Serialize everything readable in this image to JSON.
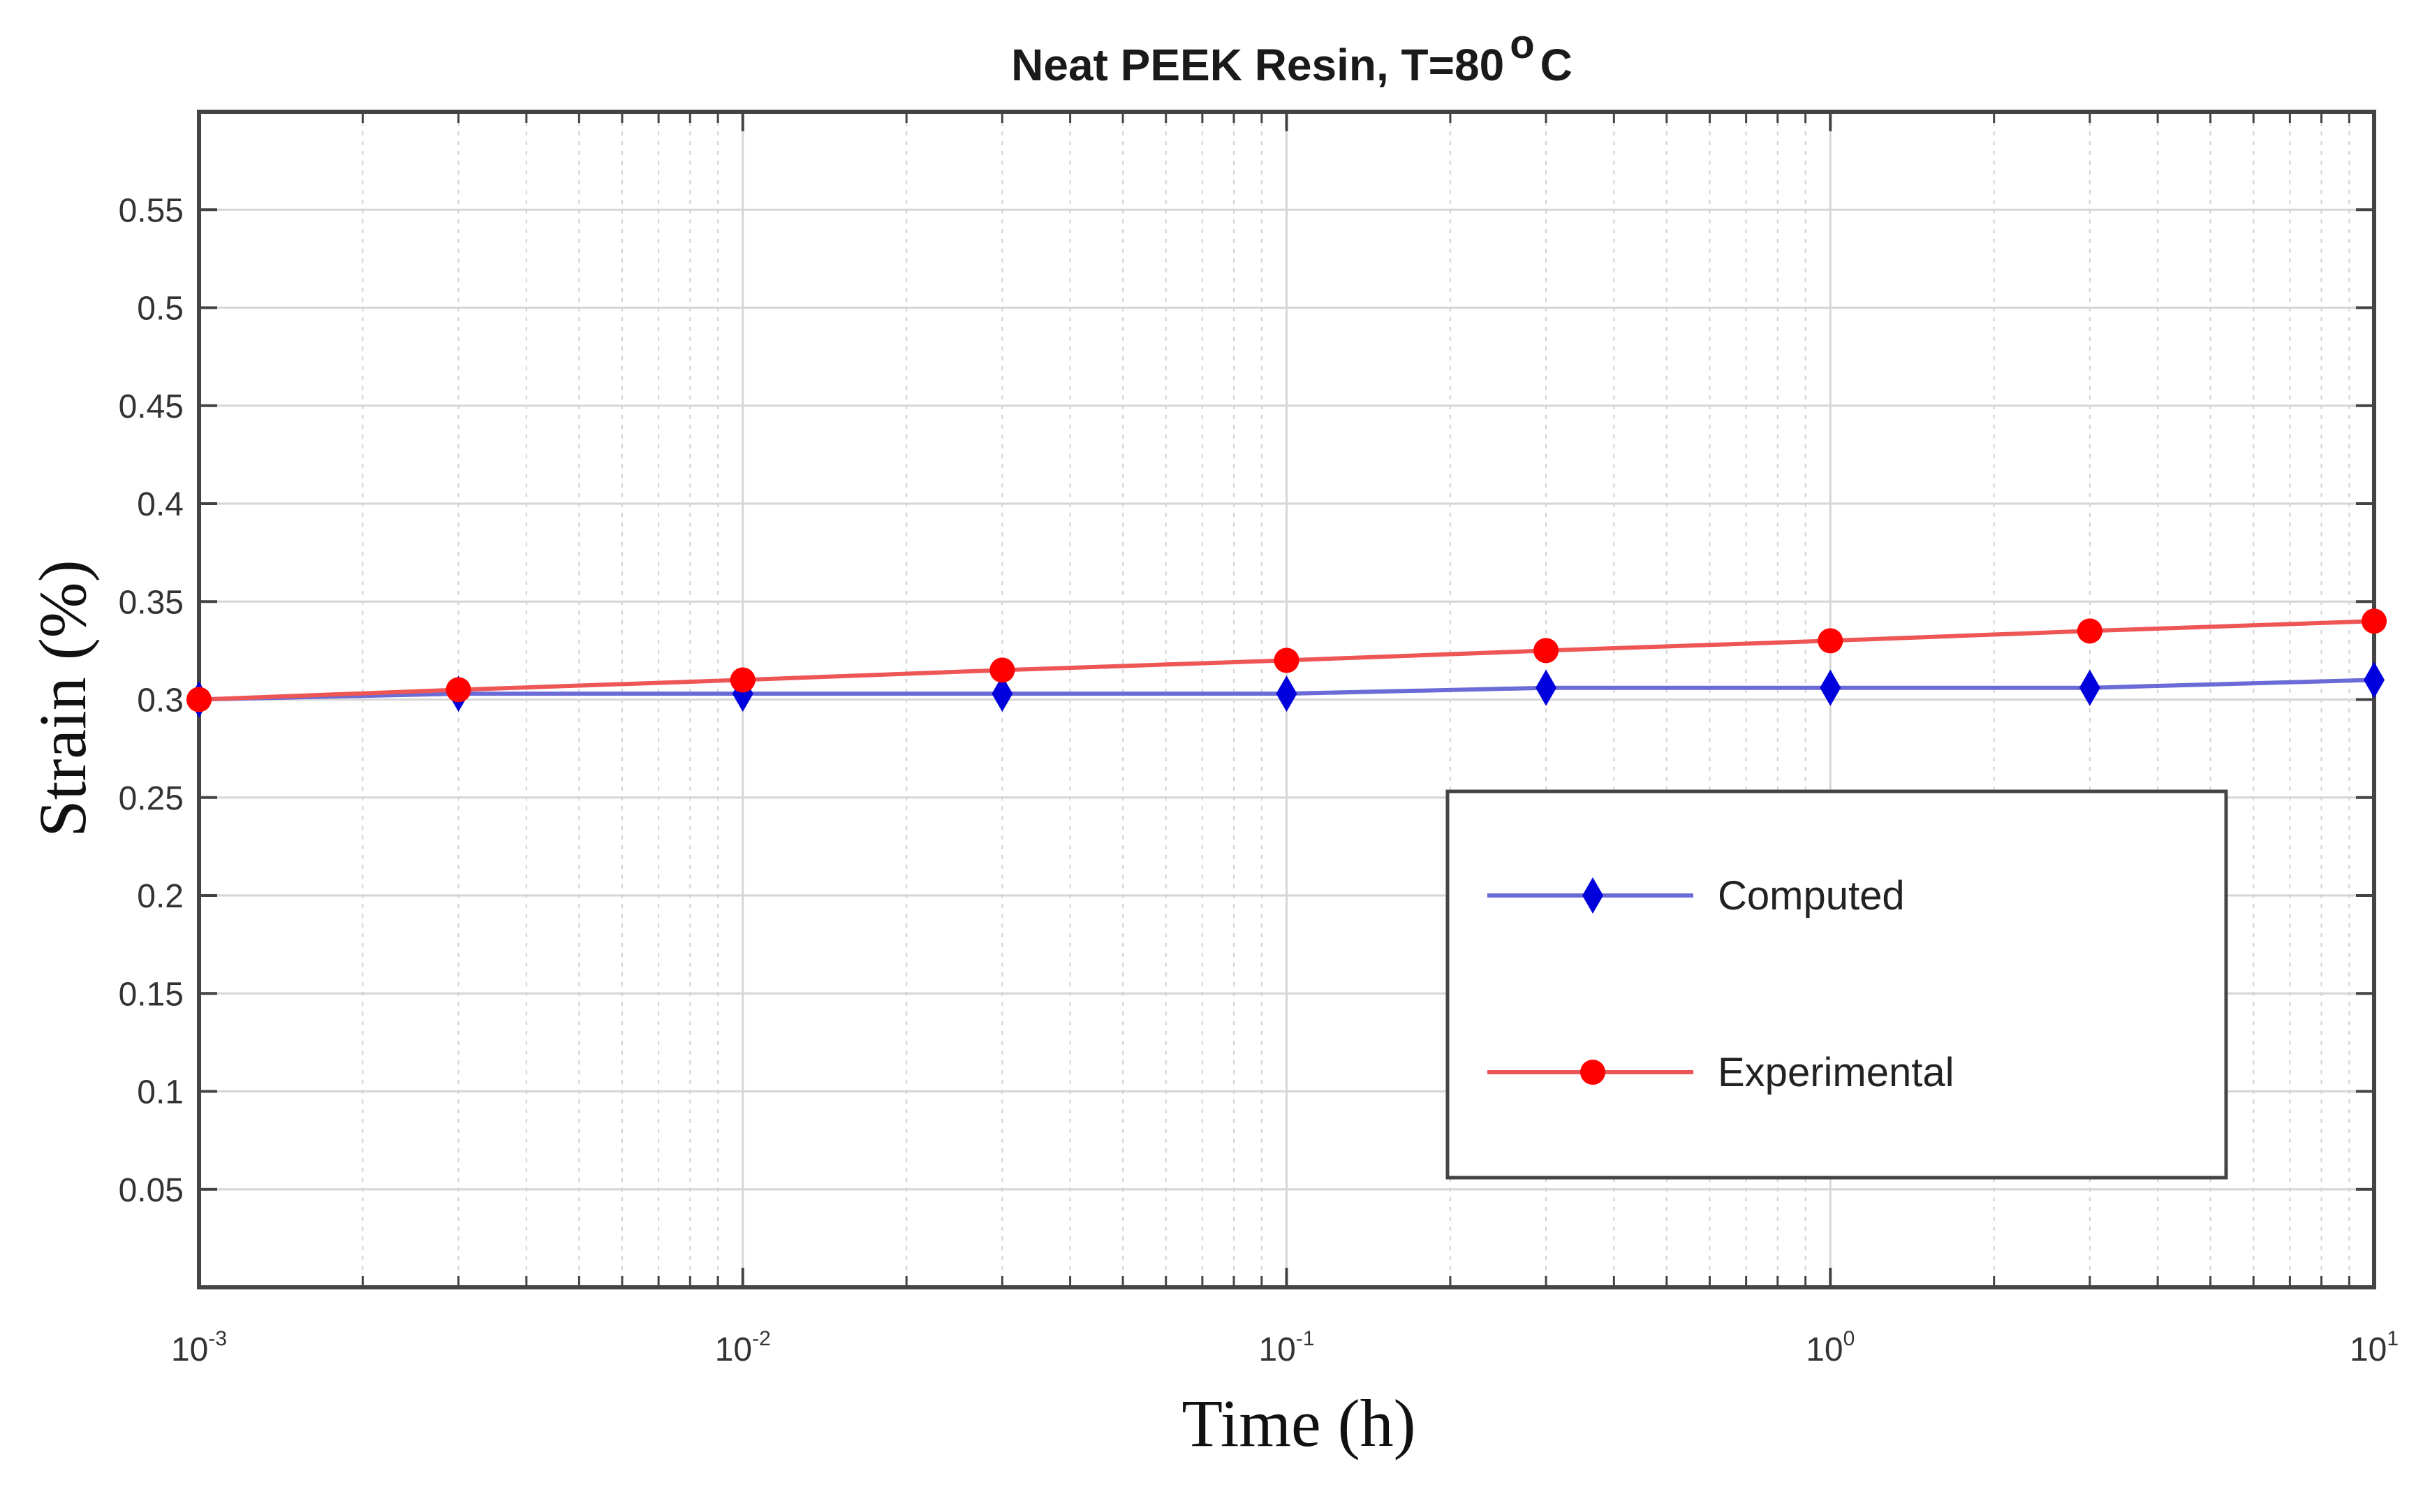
{
  "chart_data": {
    "type": "line",
    "title": "Neat PEEK Resin, T=80",
    "title_superscript": "o",
    "title_suffix": "C",
    "xlabel": "Time (h)",
    "ylabel": "Strain (%)",
    "x_scale": "log",
    "xlim": [
      0.001,
      10
    ],
    "ylim": [
      0,
      0.6
    ],
    "grid": true,
    "legend_position": "lower-right",
    "x_ticks": [
      {
        "base": "10",
        "exp": "-3",
        "value": 0.001
      },
      {
        "base": "10",
        "exp": "-2",
        "value": 0.01
      },
      {
        "base": "10",
        "exp": "-1",
        "value": 0.1
      },
      {
        "base": "10",
        "exp": "0",
        "value": 1
      },
      {
        "base": "10",
        "exp": "1",
        "value": 10
      }
    ],
    "y_ticks": [
      {
        "label": "0.05",
        "value": 0.05
      },
      {
        "label": "0.1",
        "value": 0.1
      },
      {
        "label": "0.15",
        "value": 0.15
      },
      {
        "label": "0.2",
        "value": 0.2
      },
      {
        "label": "0.25",
        "value": 0.25
      },
      {
        "label": "0.3",
        "value": 0.3
      },
      {
        "label": "0.35",
        "value": 0.35
      },
      {
        "label": "0.4",
        "value": 0.4
      },
      {
        "label": "0.45",
        "value": 0.45
      },
      {
        "label": "0.5",
        "value": 0.5
      },
      {
        "label": "0.55",
        "value": 0.55
      }
    ],
    "series": [
      {
        "name": "Computed",
        "color": "#0000dd",
        "line_color": "#6b6bd8",
        "marker": "diamond",
        "x": [
          0.001,
          0.003,
          0.01,
          0.03,
          0.1,
          0.3,
          1,
          3,
          10
        ],
        "y": [
          0.3,
          0.303,
          0.303,
          0.303,
          0.303,
          0.306,
          0.306,
          0.306,
          0.31
        ]
      },
      {
        "name": "Experimental",
        "color": "#ff0000",
        "line_color": "#ee5555",
        "marker": "circle",
        "x": [
          0.001,
          0.003,
          0.01,
          0.03,
          0.1,
          0.3,
          1,
          3,
          10
        ],
        "y": [
          0.3,
          0.305,
          0.31,
          0.315,
          0.32,
          0.325,
          0.33,
          0.335,
          0.34
        ]
      }
    ]
  }
}
